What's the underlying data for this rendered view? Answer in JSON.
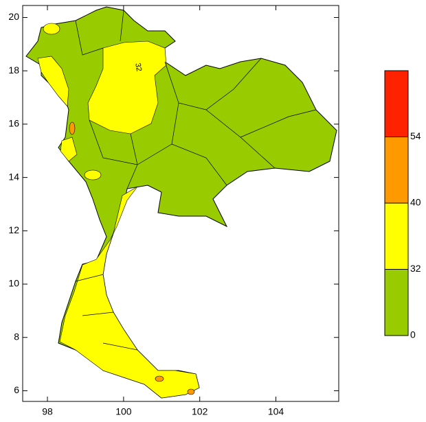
{
  "map": {
    "xlim": [
      97.35,
      105.65
    ],
    "xticks": [
      98,
      100,
      102,
      104
    ],
    "ylim": [
      5.6,
      20.45
    ],
    "yticks": [
      6,
      8,
      10,
      12,
      14,
      16,
      18,
      20
    ],
    "contour_label": "32",
    "colorbar": {
      "levels": [
        0,
        32,
        40,
        54
      ],
      "colors": [
        "#99cc00",
        "#ffff00",
        "#ff9900",
        "#ff2200"
      ]
    }
  }
}
